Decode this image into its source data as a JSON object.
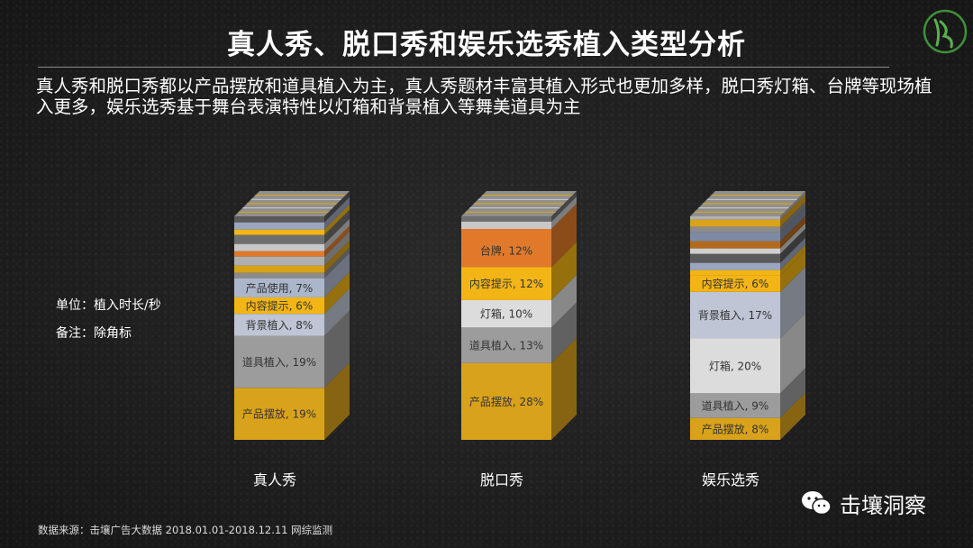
{
  "title": "真人秀、脱口秀和娱乐选秀植入类型分析",
  "subtitle": "真人秀和脱口秀都以产品摆放和道具植入为主，真人秀题材丰富其植入形式也更加多样，脱口秀灯箱、台牌等现场植入更多，娱乐选秀基于舞台表演特性以灯箱和背景植入等舞美道具为主",
  "notes": {
    "unit": "单位：植入时长/秒",
    "remark": "备注：除角标"
  },
  "source": "数据来源：击壤广告大数据 2018.01.01-2018.12.11 网综监测",
  "brand": "击壤洞察",
  "chart_data": {
    "type": "bar",
    "stacked": true,
    "unit": "%",
    "categories": [
      "真人秀",
      "脱口秀",
      "娱乐选秀"
    ],
    "stacks": [
      {
        "category": "真人秀",
        "labeled_segments": [
          {
            "name": "产品摆放",
            "value": 19,
            "label": "产品摆放, 19%",
            "color": "#d9a21b"
          },
          {
            "name": "道具植入",
            "value": 19,
            "label": "道具植入, 19%",
            "color": "#9c9c9c"
          },
          {
            "name": "背景植入",
            "value": 8,
            "label": "背景植入, 8%",
            "color": "#bfc5d4"
          },
          {
            "name": "内容提示",
            "value": 6,
            "label": "内容提示, 6%",
            "color": "#f2b515"
          },
          {
            "name": "产品使用",
            "value": 7,
            "label": "产品使用, 7%",
            "color": "#acb6cb"
          }
        ]
      },
      {
        "category": "脱口秀",
        "labeled_segments": [
          {
            "name": "产品摆放",
            "value": 28,
            "label": "产品摆放, 28%",
            "color": "#d9a21b"
          },
          {
            "name": "道具植入",
            "value": 13,
            "label": "道具植入, 13%",
            "color": "#9c9c9c"
          },
          {
            "name": "灯箱",
            "value": 10,
            "label": "灯箱, 10%",
            "color": "#dcdcdc"
          },
          {
            "name": "内容提示",
            "value": 12,
            "label": "内容提示, 12%",
            "color": "#f2b515"
          },
          {
            "name": "台牌",
            "value": 12,
            "label": "台牌, 12%",
            "color": "#e07a2a"
          }
        ]
      },
      {
        "category": "娱乐选秀",
        "labeled_segments": [
          {
            "name": "产品摆放",
            "value": 8,
            "label": "产品摆放, 8%",
            "color": "#d9a21b"
          },
          {
            "name": "道具植入",
            "value": 9,
            "label": "道具植入, 9%",
            "color": "#9c9c9c"
          },
          {
            "name": "灯箱",
            "value": 20,
            "label": "灯箱, 20%",
            "color": "#dcdcdc"
          },
          {
            "name": "背景植入",
            "value": 17,
            "label": "背景植入, 17%",
            "color": "#bfc5d4"
          },
          {
            "name": "内容提示",
            "value": 6,
            "label": "内容提示, 6%",
            "color": "#f2b515"
          }
        ]
      }
    ]
  }
}
